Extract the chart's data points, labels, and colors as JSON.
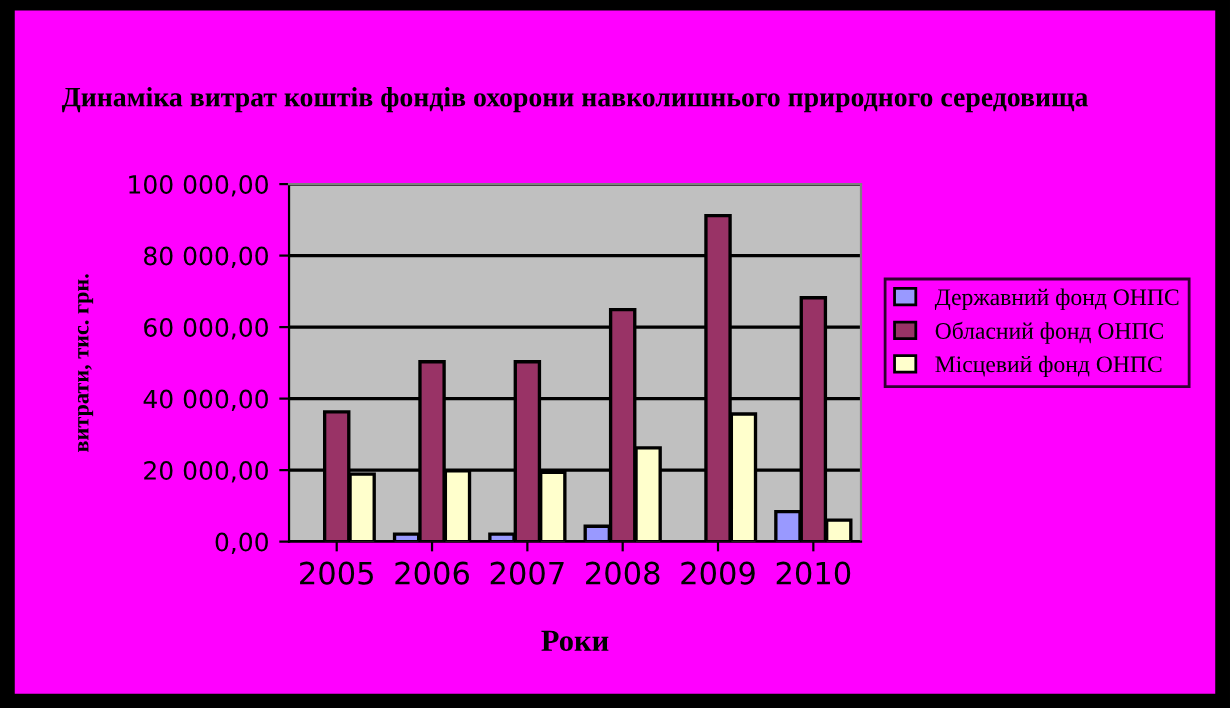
{
  "chart_data": {
    "type": "bar",
    "title": "Динаміка витрат коштів фондів охорони навколишнього природного середовища",
    "xlabel": "Роки",
    "ylabel": "витрати, тис. грн.",
    "categories": [
      "2005",
      "2006",
      "2007",
      "2008",
      "2009",
      "2010"
    ],
    "series": [
      {
        "name": "Державний фонд ОНПС",
        "color": "#9999ff",
        "values": [
          null,
          2100,
          2100,
          4300,
          null,
          8400
        ]
      },
      {
        "name": "Обласний фонд ОНПС",
        "color": "#993366",
        "values": [
          36300,
          50300,
          50300,
          64900,
          91200,
          68200
        ]
      },
      {
        "name": "Місцевий фонд ОНПС",
        "color": "#ffffcc",
        "values": [
          18900,
          19800,
          19400,
          26200,
          35700,
          6000
        ]
      }
    ],
    "ylim": [
      0,
      100000
    ],
    "yticks": [
      {
        "value": 0,
        "label": "0,00"
      },
      {
        "value": 20000,
        "label": "20 000,00"
      },
      {
        "value": 40000,
        "label": "40 000,00"
      },
      {
        "value": 60000,
        "label": "60 000,00"
      },
      {
        "value": 80000,
        "label": "80 000,00"
      },
      {
        "value": 100000,
        "label": "100 000,00"
      }
    ],
    "grid": "y",
    "legend": "right"
  }
}
